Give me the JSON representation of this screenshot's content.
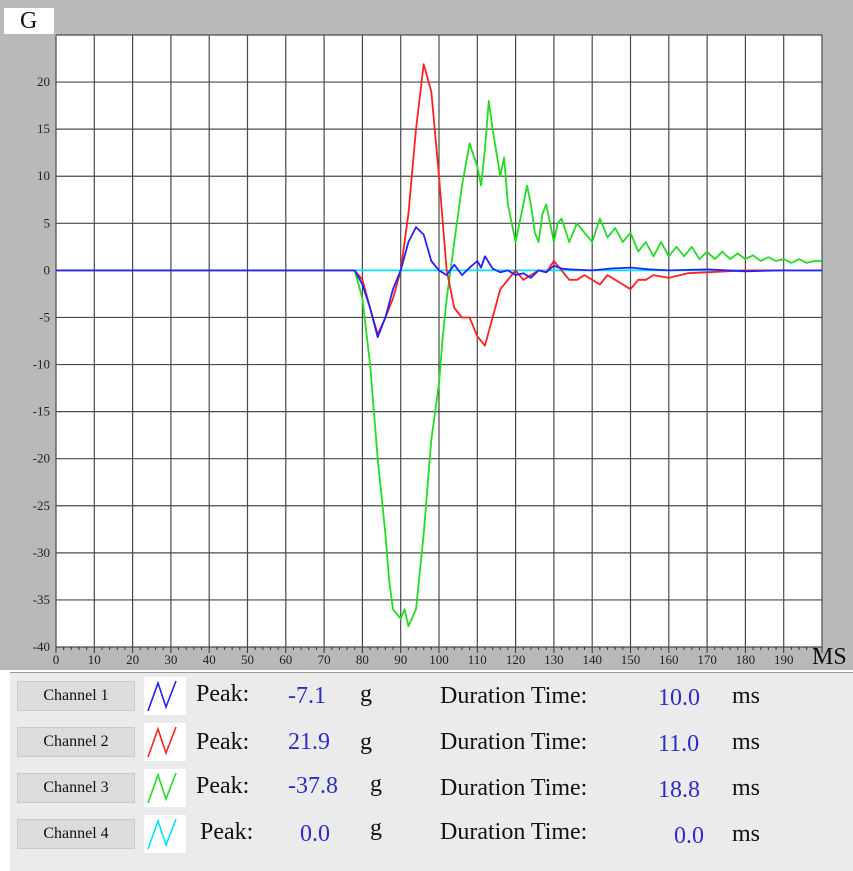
{
  "colors": {
    "frame_bg": "#b9b9b9",
    "plot_bg": "#ffffff",
    "grid": "#4a4a4a",
    "ch1": "#2222ff",
    "ch2": "#ff2020",
    "ch3": "#22dd22",
    "ch4": "#00e5ff",
    "value_text": "#2b2bd0"
  },
  "chart_data": {
    "type": "line",
    "ylabel": "G",
    "xlabel": "MS",
    "xlim": [
      0,
      200
    ],
    "ylim": [
      -40,
      25
    ],
    "grid": true,
    "x_ticks": [
      0,
      10,
      20,
      30,
      40,
      50,
      60,
      70,
      80,
      90,
      100,
      110,
      120,
      130,
      140,
      150,
      160,
      170,
      180,
      190
    ],
    "y_ticks": [
      20,
      15,
      10,
      5,
      0,
      -5,
      -10,
      -15,
      -20,
      -25,
      -30,
      -35,
      -40
    ],
    "series": [
      {
        "name": "Channel 1",
        "color": "#2222ff",
        "points": [
          [
            0,
            0
          ],
          [
            78,
            0
          ],
          [
            80,
            -1.5
          ],
          [
            82,
            -4
          ],
          [
            84,
            -7.1
          ],
          [
            86,
            -5
          ],
          [
            88,
            -2
          ],
          [
            90,
            0
          ],
          [
            92,
            3
          ],
          [
            94,
            4.6
          ],
          [
            96,
            3.8
          ],
          [
            98,
            1
          ],
          [
            100,
            0
          ],
          [
            102,
            -0.5
          ],
          [
            104,
            0.6
          ],
          [
            106,
            -0.5
          ],
          [
            108,
            0.3
          ],
          [
            110,
            1
          ],
          [
            111,
            0.3
          ],
          [
            112,
            1.5
          ],
          [
            114,
            0.2
          ],
          [
            116,
            -0.2
          ],
          [
            118,
            0
          ],
          [
            120,
            -0.5
          ],
          [
            122,
            -0.3
          ],
          [
            124,
            -0.8
          ],
          [
            126,
            0
          ],
          [
            128,
            -0.2
          ],
          [
            130,
            0.5
          ],
          [
            132,
            0.2
          ],
          [
            134,
            0.1
          ],
          [
            140,
            0
          ],
          [
            145,
            0.2
          ],
          [
            150,
            0.3
          ],
          [
            155,
            0.1
          ],
          [
            160,
            0
          ],
          [
            170,
            0.1
          ],
          [
            180,
            -0.1
          ],
          [
            190,
            0
          ],
          [
            200,
            0
          ]
        ]
      },
      {
        "name": "Channel 2",
        "color": "#ff2020",
        "points": [
          [
            0,
            0
          ],
          [
            78,
            0
          ],
          [
            80,
            -1
          ],
          [
            82,
            -4
          ],
          [
            84,
            -6.8
          ],
          [
            86,
            -5
          ],
          [
            88,
            -3
          ],
          [
            90,
            0
          ],
          [
            92,
            6
          ],
          [
            94,
            15
          ],
          [
            96,
            21.9
          ],
          [
            98,
            19
          ],
          [
            100,
            10
          ],
          [
            102,
            0
          ],
          [
            104,
            -4
          ],
          [
            106,
            -5
          ],
          [
            108,
            -5
          ],
          [
            110,
            -7
          ],
          [
            112,
            -8
          ],
          [
            114,
            -5
          ],
          [
            116,
            -2
          ],
          [
            118,
            -1
          ],
          [
            120,
            0
          ],
          [
            122,
            -1
          ],
          [
            124,
            -0.5
          ],
          [
            126,
            0
          ],
          [
            128,
            -0.2
          ],
          [
            130,
            1
          ],
          [
            132,
            0
          ],
          [
            134,
            -1
          ],
          [
            136,
            -1
          ],
          [
            138,
            -0.5
          ],
          [
            140,
            -1
          ],
          [
            142,
            -1.5
          ],
          [
            144,
            -0.5
          ],
          [
            146,
            -1
          ],
          [
            148,
            -1.5
          ],
          [
            150,
            -2
          ],
          [
            152,
            -1
          ],
          [
            154,
            -1
          ],
          [
            156,
            -0.5
          ],
          [
            160,
            -0.8
          ],
          [
            165,
            -0.3
          ],
          [
            170,
            -0.2
          ],
          [
            180,
            0
          ],
          [
            200,
            0
          ]
        ]
      },
      {
        "name": "Channel 3",
        "color": "#22dd22",
        "points": [
          [
            0,
            0
          ],
          [
            78,
            0
          ],
          [
            80,
            -3
          ],
          [
            82,
            -10
          ],
          [
            84,
            -20
          ],
          [
            86,
            -28
          ],
          [
            87,
            -33
          ],
          [
            88,
            -36
          ],
          [
            90,
            -37
          ],
          [
            91,
            -36
          ],
          [
            92,
            -37.8
          ],
          [
            94,
            -36
          ],
          [
            96,
            -28
          ],
          [
            98,
            -18
          ],
          [
            100,
            -12
          ],
          [
            101,
            -7
          ],
          [
            102,
            -3
          ],
          [
            103,
            0
          ],
          [
            104,
            3
          ],
          [
            106,
            9
          ],
          [
            108,
            13.5
          ],
          [
            110,
            11
          ],
          [
            111,
            9
          ],
          [
            112,
            13
          ],
          [
            113,
            18
          ],
          [
            114,
            15
          ],
          [
            116,
            10
          ],
          [
            117,
            12
          ],
          [
            118,
            7
          ],
          [
            119,
            5
          ],
          [
            120,
            3
          ],
          [
            122,
            7
          ],
          [
            123,
            9
          ],
          [
            124,
            7
          ],
          [
            125,
            4
          ],
          [
            126,
            3
          ],
          [
            127,
            6
          ],
          [
            128,
            7
          ],
          [
            129,
            5
          ],
          [
            130,
            3
          ],
          [
            131,
            5
          ],
          [
            132,
            5.5
          ],
          [
            134,
            3
          ],
          [
            136,
            5
          ],
          [
            138,
            4
          ],
          [
            140,
            3
          ],
          [
            142,
            5.5
          ],
          [
            144,
            3.5
          ],
          [
            146,
            4.5
          ],
          [
            148,
            3
          ],
          [
            150,
            4
          ],
          [
            152,
            2
          ],
          [
            154,
            3
          ],
          [
            156,
            1.5
          ],
          [
            158,
            3
          ],
          [
            160,
            1.5
          ],
          [
            162,
            2.5
          ],
          [
            164,
            1.5
          ],
          [
            166,
            2.5
          ],
          [
            168,
            1.2
          ],
          [
            170,
            2
          ],
          [
            172,
            1.2
          ],
          [
            174,
            2
          ],
          [
            176,
            1.2
          ],
          [
            178,
            1.8
          ],
          [
            180,
            1.2
          ],
          [
            182,
            1.6
          ],
          [
            184,
            1
          ],
          [
            186,
            1.4
          ],
          [
            188,
            1
          ],
          [
            190,
            1.2
          ],
          [
            192,
            0.8
          ],
          [
            194,
            1.2
          ],
          [
            196,
            0.8
          ],
          [
            198,
            1
          ],
          [
            200,
            1
          ]
        ]
      },
      {
        "name": "Channel 4",
        "color": "#00e5ff",
        "points": [
          [
            0,
            0
          ],
          [
            200,
            0
          ]
        ]
      }
    ]
  },
  "channels": [
    {
      "button": "Channel 1",
      "peak_label": "Peak:",
      "peak_value": "-7.1",
      "peak_unit": "g",
      "duration_label": "Duration Time:",
      "duration_value": "10.0",
      "duration_unit": "ms",
      "color": "#2222ff"
    },
    {
      "button": "Channel 2",
      "peak_label": "Peak:",
      "peak_value": "21.9",
      "peak_unit": "g",
      "duration_label": "Duration Time:",
      "duration_value": "11.0",
      "duration_unit": "ms",
      "color": "#ff2020"
    },
    {
      "button": "Channel 3",
      "peak_label": "Peak:",
      "peak_value": "-37.8",
      "peak_unit": "g",
      "duration_label": "Duration Time:",
      "duration_value": "18.8",
      "duration_unit": "ms",
      "color": "#22dd22"
    },
    {
      "button": "Channel 4",
      "peak_label": "Peak:",
      "peak_value": "0.0",
      "peak_unit": "g",
      "duration_label": "Duration Time:",
      "duration_value": "0.0",
      "duration_unit": "ms",
      "color": "#00e5ff"
    }
  ]
}
